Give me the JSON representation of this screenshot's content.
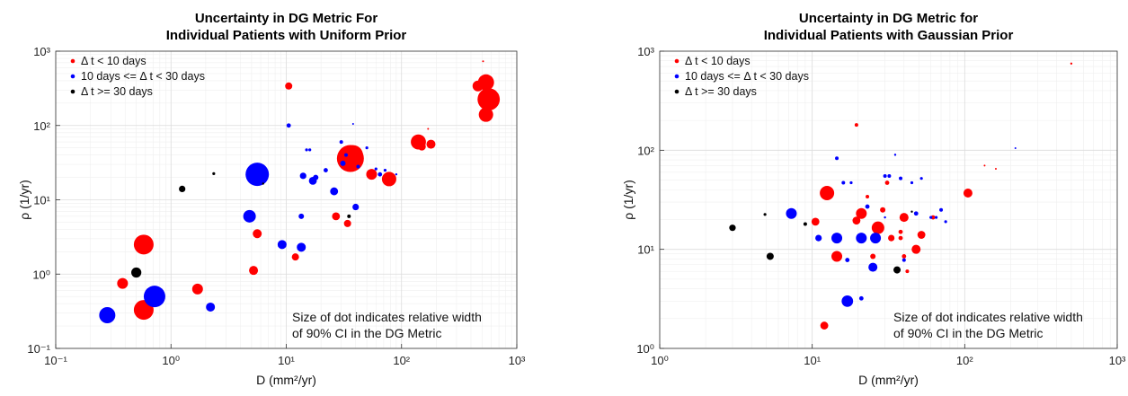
{
  "colors": {
    "short": "#ff0000",
    "mid": "#0000ff",
    "long": "#000000"
  },
  "chart_data": [
    {
      "type": "scatter",
      "title_line1": "Uncertainty in DG Metric For",
      "title_line2": "Individual Patients with Uniform Prior",
      "xlabel": "D (mm²/yr)",
      "ylabel": "ρ (1/yr)",
      "xscale": "log",
      "yscale": "log",
      "xlim": [
        0.1,
        1000
      ],
      "ylim": [
        0.1,
        1000
      ],
      "xticks": [
        "10⁻¹",
        "10⁰",
        "10¹",
        "10²",
        "10³"
      ],
      "yticks": [
        "10⁻¹",
        "10⁰",
        "10¹",
        "10²",
        "10³"
      ],
      "grid": true,
      "legend_position": "top-left",
      "annotation_line1": "Size of dot indicates relative width",
      "annotation_line2": "of 90% CI in the DG Metric",
      "series": [
        {
          "name": "Δ t < 10 days",
          "color": "#ff0000",
          "points": [
            [
              10.5,
              340,
              0.2
            ],
            [
              0.38,
              0.75,
              0.3
            ],
            [
              0.58,
              2.5,
              0.55
            ],
            [
              0.58,
              0.33,
              0.55
            ],
            [
              1.7,
              0.63,
              0.3
            ],
            [
              5.2,
              1.12,
              0.25
            ],
            [
              5.6,
              3.5,
              0.25
            ],
            [
              12,
              1.7,
              0.2
            ],
            [
              27,
              6.0,
              0.22
            ],
            [
              34,
              4.8,
              0.2
            ],
            [
              36,
              36,
              0.75
            ],
            [
              38,
              40,
              0.55
            ],
            [
              55,
              22,
              0.3
            ],
            [
              78,
              19,
              0.4
            ],
            [
              140,
              60,
              0.42
            ],
            [
              150,
              52,
              0.22
            ],
            [
              180,
              56,
              0.25
            ],
            [
              460,
              340,
              0.3
            ],
            [
              540,
              380,
              0.45
            ],
            [
              570,
              225,
              0.62
            ],
            [
              540,
              140,
              0.4
            ],
            [
              510,
              730,
              0.03
            ],
            [
              170,
              90,
              0.03
            ]
          ]
        },
        {
          "name": "10 days <= Δ t < 30 days",
          "color": "#0000ff",
          "points": [
            [
              0.28,
              0.28,
              0.45
            ],
            [
              0.72,
              0.5,
              0.6
            ],
            [
              2.2,
              0.36,
              0.25
            ],
            [
              4.8,
              6.0,
              0.35
            ],
            [
              5.6,
              22,
              0.65
            ],
            [
              9.2,
              2.5,
              0.25
            ],
            [
              10.5,
              100,
              0.12
            ],
            [
              13.5,
              2.3,
              0.25
            ],
            [
              13.5,
              6.0,
              0.15
            ],
            [
              14,
              21,
              0.18
            ],
            [
              15,
              47,
              0.08
            ],
            [
              16,
              47,
              0.08
            ],
            [
              17,
              18,
              0.22
            ],
            [
              18,
              20,
              0.15
            ],
            [
              22,
              25,
              0.12
            ],
            [
              26,
              13,
              0.22
            ],
            [
              30,
              60,
              0.1
            ],
            [
              31,
              31,
              0.15
            ],
            [
              33,
              40,
              0.1
            ],
            [
              40,
              8.0,
              0.18
            ],
            [
              42,
              28,
              0.1
            ],
            [
              50,
              50,
              0.08
            ],
            [
              60,
              26,
              0.08
            ],
            [
              65,
              22,
              0.12
            ],
            [
              72,
              25,
              0.08
            ],
            [
              90,
              22,
              0.06
            ],
            [
              38,
              105,
              0.03
            ]
          ]
        },
        {
          "name": "Δ t >= 30 days",
          "color": "#000000",
          "points": [
            [
              0.5,
              1.05,
              0.28
            ],
            [
              1.25,
              14,
              0.18
            ],
            [
              2.35,
              22.5,
              0.08
            ],
            [
              6.3,
              16.5,
              0.06
            ],
            [
              35,
              6.0,
              0.1
            ]
          ]
        }
      ]
    },
    {
      "type": "scatter",
      "title_line1": "Uncertainty in DG Metric for",
      "title_line2": "Individual Patients with Gaussian Prior",
      "xlabel": "D (mm²/yr)",
      "ylabel": "ρ (1/yr)",
      "xscale": "log",
      "yscale": "log",
      "xlim": [
        1,
        1000
      ],
      "ylim": [
        1,
        1000
      ],
      "xticks": [
        "10⁰",
        "10¹",
        "10²",
        "10³"
      ],
      "yticks": [
        "10⁰",
        "10¹",
        "10²",
        "10³"
      ],
      "grid": true,
      "legend_position": "top-left",
      "annotation_line1": "Size of dot indicates relative width",
      "annotation_line2": "of 90% CI in the DG Metric",
      "series": [
        {
          "name": "Δ t < 10 days",
          "color": "#ff0000",
          "points": [
            [
              12.5,
              37,
              0.4
            ],
            [
              10.5,
              19,
              0.22
            ],
            [
              12,
              1.7,
              0.22
            ],
            [
              14.5,
              8.5,
              0.3
            ],
            [
              19.5,
              19.5,
              0.22
            ],
            [
              21,
              23,
              0.3
            ],
            [
              19.5,
              180,
              0.1
            ],
            [
              23,
              34,
              0.1
            ],
            [
              25,
              8.5,
              0.15
            ],
            [
              27,
              16.5,
              0.35
            ],
            [
              29,
              25,
              0.15
            ],
            [
              31,
              47,
              0.12
            ],
            [
              33,
              13,
              0.18
            ],
            [
              38,
              15,
              0.12
            ],
            [
              38,
              13,
              0.12
            ],
            [
              40,
              21,
              0.25
            ],
            [
              40,
              8.5,
              0.12
            ],
            [
              42,
              6.0,
              0.1
            ],
            [
              48,
              10,
              0.25
            ],
            [
              52,
              14,
              0.22
            ],
            [
              62,
              21,
              0.12
            ],
            [
              105,
              37,
              0.25
            ],
            [
              135,
              70,
              0.05
            ],
            [
              160,
              65,
              0.04
            ],
            [
              500,
              750,
              0.06
            ]
          ]
        },
        {
          "name": "10 days <= Δ t < 30 days",
          "color": "#0000ff",
          "points": [
            [
              7.3,
              23,
              0.3
            ],
            [
              11,
              13,
              0.18
            ],
            [
              14.5,
              83,
              0.1
            ],
            [
              14.5,
              13,
              0.3
            ],
            [
              16,
              47,
              0.1
            ],
            [
              17,
              3.0,
              0.32
            ],
            [
              17,
              7.8,
              0.12
            ],
            [
              18,
              47,
              0.08
            ],
            [
              21,
              13,
              0.3
            ],
            [
              21,
              3.2,
              0.12
            ],
            [
              23,
              27,
              0.12
            ],
            [
              25,
              6.6,
              0.25
            ],
            [
              26,
              13,
              0.3
            ],
            [
              30,
              55,
              0.1
            ],
            [
              32,
              55,
              0.1
            ],
            [
              35,
              90,
              0.06
            ],
            [
              38,
              52,
              0.1
            ],
            [
              40,
              7.8,
              0.1
            ],
            [
              45,
              47,
              0.08
            ],
            [
              48,
              23,
              0.12
            ],
            [
              52,
              52,
              0.08
            ],
            [
              60,
              21,
              0.08
            ],
            [
              65,
              21,
              0.08
            ],
            [
              70,
              25,
              0.1
            ],
            [
              75,
              19,
              0.08
            ],
            [
              215,
              105,
              0.03
            ],
            [
              30,
              21,
              0.06
            ]
          ]
        },
        {
          "name": "Δ t >= 30 days",
          "color": "#000000",
          "points": [
            [
              3,
              16.5,
              0.18
            ],
            [
              4.9,
              22.5,
              0.08
            ],
            [
              5.3,
              8.5,
              0.2
            ],
            [
              9,
              18,
              0.1
            ],
            [
              36,
              6.2,
              0.2
            ],
            [
              45,
              24,
              0.06
            ]
          ]
        }
      ]
    }
  ]
}
